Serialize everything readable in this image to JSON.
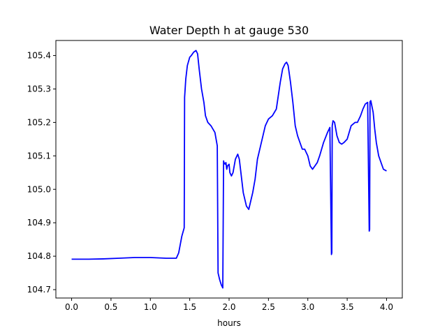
{
  "chart_data": {
    "type": "line",
    "title": "Water Depth h at gauge 530",
    "xlabel": "hours",
    "ylabel": "",
    "xlim": [
      -0.2,
      4.2
    ],
    "ylim": [
      104.675,
      105.445
    ],
    "xticks": [
      0.0,
      0.5,
      1.0,
      1.5,
      2.0,
      2.5,
      3.0,
      3.5,
      4.0
    ],
    "xtick_labels": [
      "0.0",
      "0.5",
      "1.0",
      "1.5",
      "2.0",
      "2.5",
      "3.0",
      "3.5",
      "4.0"
    ],
    "yticks": [
      104.7,
      104.8,
      104.9,
      105.0,
      105.1,
      105.2,
      105.3,
      105.4
    ],
    "ytick_labels": [
      "104.7",
      "104.8",
      "104.9",
      "105.0",
      "105.1",
      "105.2",
      "105.3",
      "105.4"
    ],
    "grid": false,
    "line_color": "#0000ff",
    "series": [
      {
        "x": [
          0.0,
          0.2,
          0.4,
          0.6,
          0.8,
          1.0,
          1.2,
          1.33,
          1.36,
          1.4,
          1.43,
          1.435,
          1.45,
          1.47,
          1.5,
          1.52,
          1.55,
          1.58,
          1.6,
          1.62,
          1.65,
          1.68,
          1.7,
          1.73,
          1.77,
          1.82,
          1.85,
          1.86,
          1.87,
          1.88,
          1.9,
          1.92,
          1.93,
          1.935,
          1.95,
          1.96,
          1.97,
          1.98,
          2.0,
          2.01,
          2.03,
          2.05,
          2.08,
          2.11,
          2.13,
          2.15,
          2.18,
          2.22,
          2.25,
          2.28,
          2.3,
          2.33,
          2.36,
          2.4,
          2.43,
          2.46,
          2.5,
          2.55,
          2.6,
          2.65,
          2.68,
          2.71,
          2.73,
          2.75,
          2.78,
          2.81,
          2.84,
          2.87,
          2.9,
          2.93,
          2.96,
          3.0,
          3.03,
          3.06,
          3.09,
          3.12,
          3.15,
          3.2,
          3.25,
          3.28,
          3.3,
          3.305,
          3.31,
          3.32,
          3.34,
          3.37,
          3.4,
          3.43,
          3.46,
          3.5,
          3.55,
          3.6,
          3.63,
          3.67,
          3.7,
          3.73,
          3.76,
          3.78,
          3.785,
          3.79,
          3.8,
          3.83,
          3.85,
          3.87,
          3.9,
          3.93,
          3.96,
          4.0
        ],
        "y": [
          104.791,
          104.791,
          104.792,
          104.794,
          104.796,
          104.796,
          104.794,
          104.794,
          104.81,
          104.86,
          104.885,
          105.275,
          105.33,
          105.37,
          105.395,
          105.4,
          105.41,
          105.415,
          105.405,
          105.36,
          105.3,
          105.26,
          105.22,
          105.2,
          105.19,
          105.17,
          105.13,
          104.75,
          104.74,
          104.73,
          104.715,
          104.705,
          105.085,
          105.08,
          105.075,
          105.08,
          105.06,
          105.07,
          105.075,
          105.05,
          105.04,
          105.05,
          105.09,
          105.105,
          105.09,
          105.05,
          104.99,
          104.95,
          104.94,
          104.97,
          104.99,
          105.03,
          105.09,
          105.13,
          105.16,
          105.19,
          105.21,
          105.22,
          105.24,
          105.32,
          105.36,
          105.375,
          105.38,
          105.37,
          105.32,
          105.26,
          105.19,
          105.16,
          105.14,
          105.12,
          105.12,
          105.1,
          105.07,
          105.06,
          105.07,
          105.08,
          105.1,
          105.14,
          105.17,
          105.185,
          104.805,
          104.81,
          105.19,
          105.205,
          105.2,
          105.16,
          105.14,
          105.135,
          105.14,
          105.15,
          105.19,
          105.2,
          105.2,
          105.22,
          105.24,
          105.255,
          105.26,
          104.875,
          104.88,
          105.262,
          105.265,
          105.23,
          105.18,
          105.14,
          105.1,
          105.08,
          105.06,
          105.055
        ]
      }
    ]
  }
}
